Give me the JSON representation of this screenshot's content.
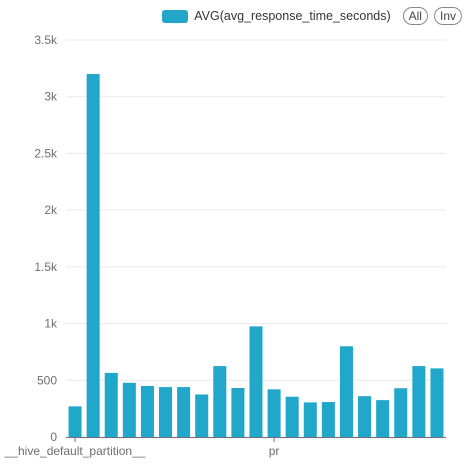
{
  "legend": {
    "series_name": "AVG(avg_response_time_seconds)",
    "all_label": "All",
    "inv_label": "Inv"
  },
  "colors": {
    "bar": "#20a7c9",
    "grid": "#e6e9ee",
    "axis": "#6e7079"
  },
  "chart_data": {
    "type": "bar",
    "series": [
      {
        "name": "AVG(avg_response_time_seconds)",
        "values": [
          270,
          3200,
          565,
          478,
          450,
          440,
          440,
          375,
          625,
          432,
          975,
          420,
          355,
          305,
          308,
          800,
          360,
          325,
          430,
          625,
          605
        ]
      }
    ],
    "x_tick_labels": [
      {
        "index": 0,
        "label": "__hive_default_partition__"
      },
      {
        "index": 11,
        "label": "pr"
      }
    ],
    "y_ticks": [
      "0",
      "500",
      "1k",
      "1.5k",
      "2k",
      "2.5k",
      "3k",
      "3.5k"
    ],
    "y_tick_values": [
      0,
      500,
      1000,
      1500,
      2000,
      2500,
      3000,
      3500
    ],
    "ylim": [
      0,
      3500
    ],
    "grid": true,
    "legend_position": "top-right"
  }
}
